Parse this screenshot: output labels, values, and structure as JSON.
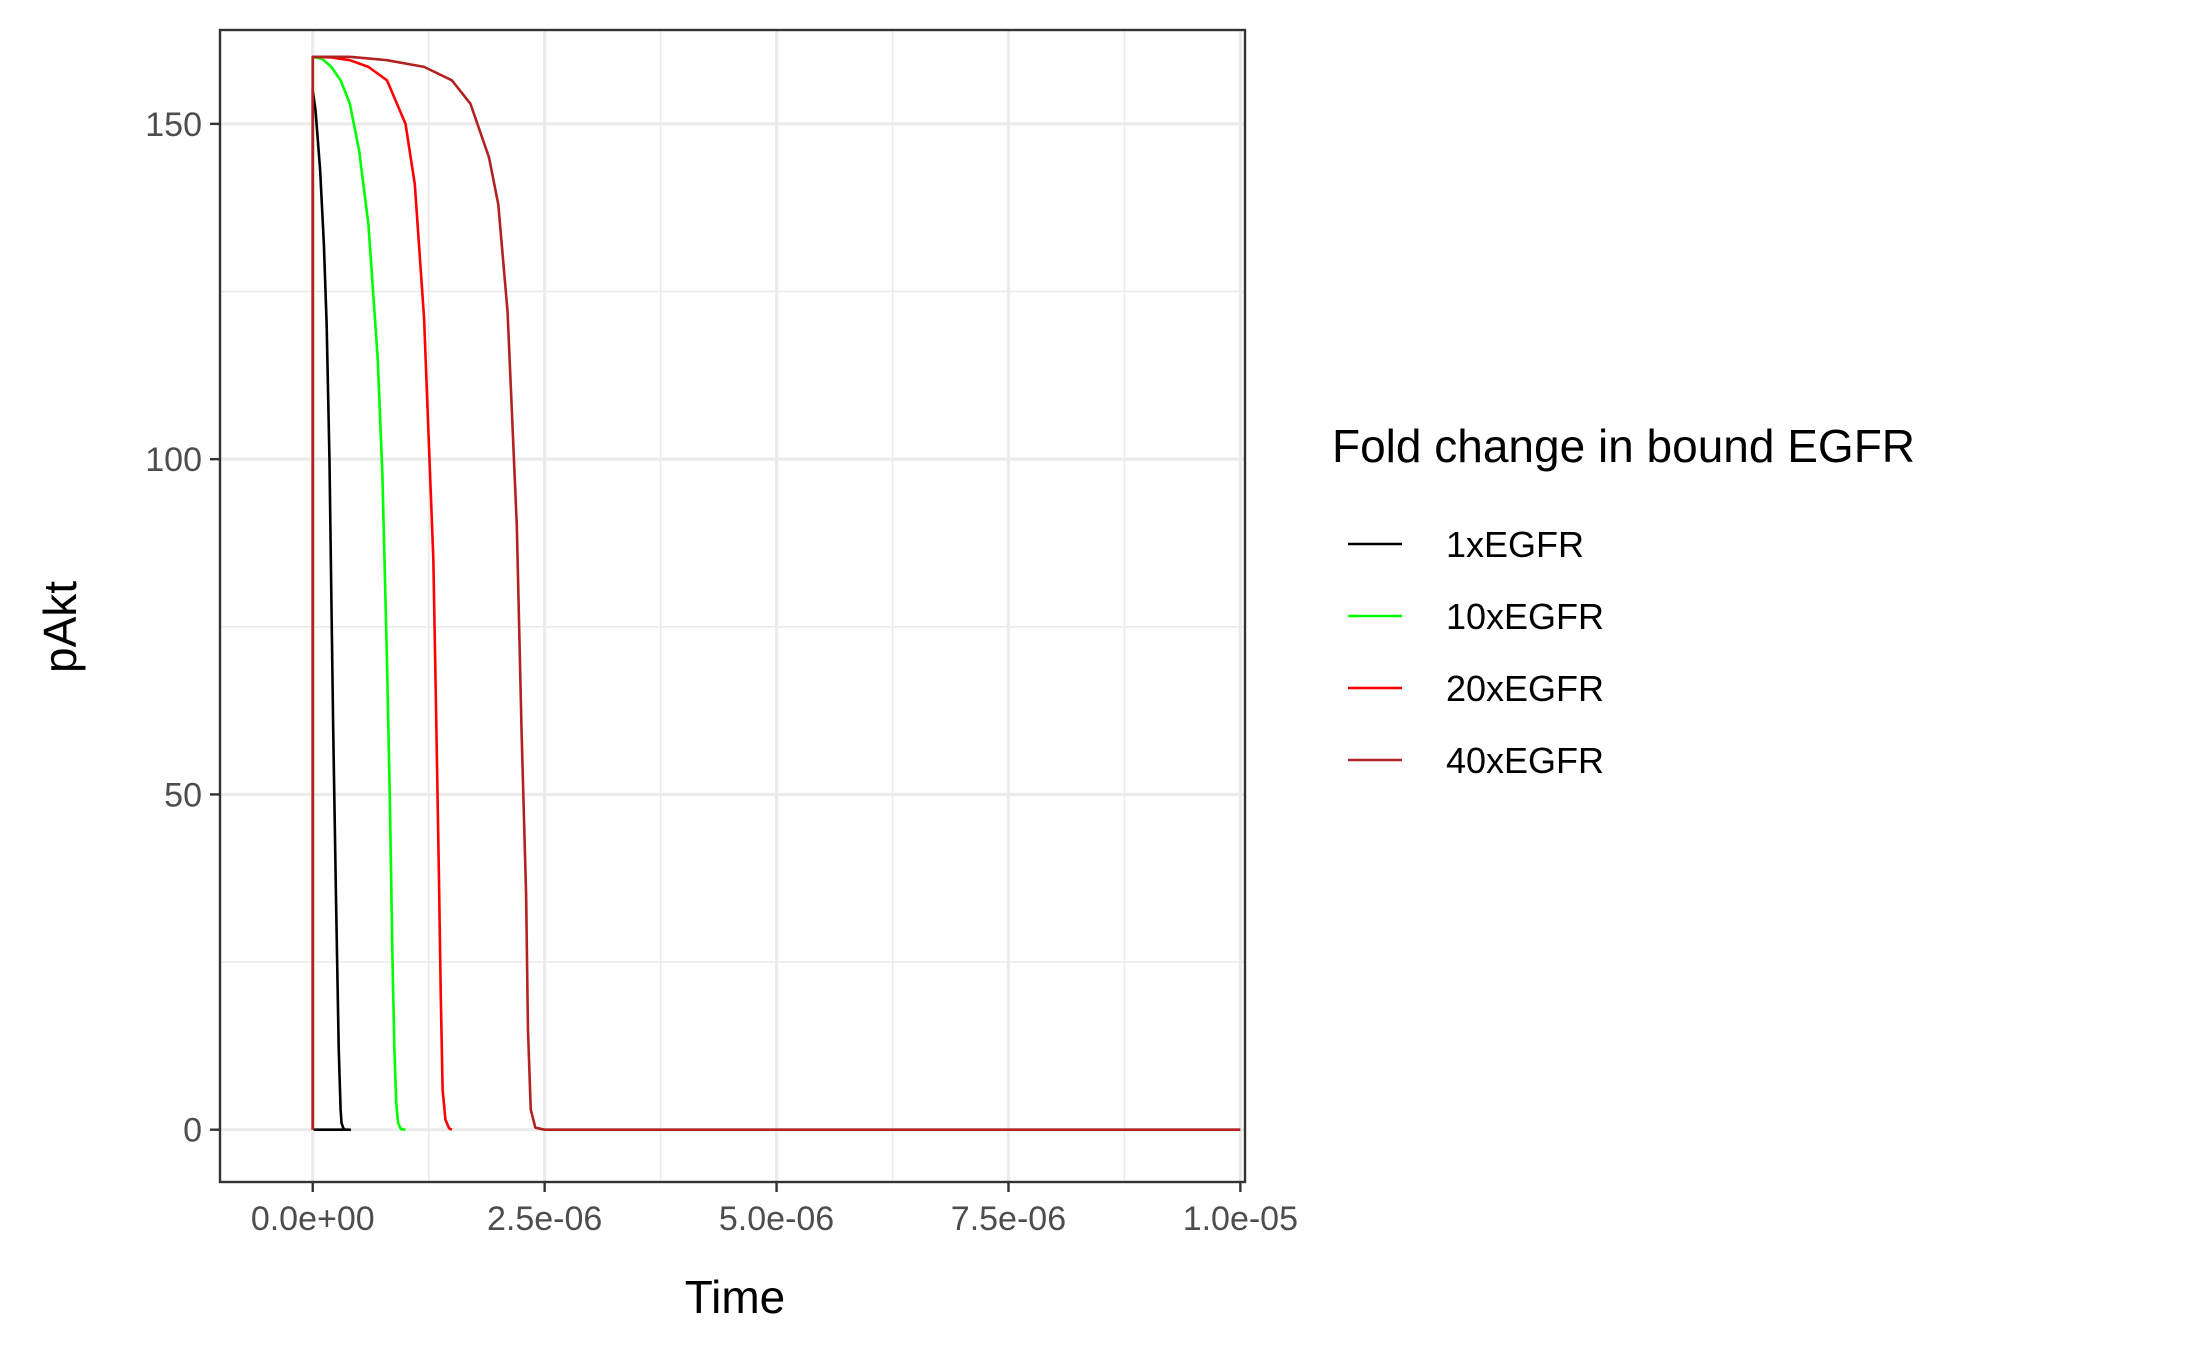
{
  "chart_data": {
    "type": "line",
    "xlabel": "Time",
    "ylabel": "pAkt",
    "xlim": [
      -1e-06,
      1.005e-05
    ],
    "ylim": [
      -7.8,
      164
    ],
    "x_ticks": [
      {
        "value": 0,
        "label": "0.0e+00"
      },
      {
        "value": 2.5e-06,
        "label": "2.5e-06"
      },
      {
        "value": 5e-06,
        "label": "5.0e-06"
      },
      {
        "value": 7.5e-06,
        "label": "7.5e-06"
      },
      {
        "value": 1e-05,
        "label": "1.0e-05"
      }
    ],
    "y_ticks": [
      {
        "value": 0,
        "label": "0"
      },
      {
        "value": 50,
        "label": "50"
      },
      {
        "value": 100,
        "label": "100"
      },
      {
        "value": 150,
        "label": "150"
      }
    ],
    "grid": true,
    "legend": {
      "title": "Fold change in bound EGFR",
      "position": "right"
    },
    "series": [
      {
        "name": "1xEGFR",
        "color": "#000000",
        "x": [
          0,
          0,
          3e-08,
          8e-08,
          1.2e-07,
          1.5e-07,
          1.8e-07,
          2e-07,
          2.2e-07,
          2.5e-07,
          2.8e-07,
          3e-07,
          3.1e-07,
          3.3e-07,
          3.5e-07,
          4e-07,
          1e-08
        ],
        "y": [
          0,
          155,
          152,
          143,
          132,
          120,
          100,
          80,
          60,
          35,
          12,
          3,
          1,
          0.2,
          0,
          0,
          0
        ]
      },
      {
        "name": "10xEGFR",
        "color": "#00ff00",
        "x": [
          0,
          0,
          1e-07,
          2e-07,
          3e-07,
          4e-07,
          5e-07,
          6e-07,
          7e-07,
          7.5e-07,
          8e-07,
          8.3e-07,
          8.6e-07,
          8.8e-07,
          9e-07,
          9.2e-07,
          9.5e-07,
          1e-06
        ],
        "y": [
          0,
          160,
          159.7,
          158.5,
          156.5,
          153,
          146,
          135,
          115,
          98,
          70,
          50,
          25,
          12,
          4,
          1,
          0.1,
          0
        ]
      },
      {
        "name": "20xEGFR",
        "color": "#ff0000",
        "x": [
          0,
          0,
          2e-07,
          4e-07,
          6e-07,
          8e-07,
          1e-06,
          1.1e-06,
          1.2e-06,
          1.3e-06,
          1.33e-06,
          1.36e-06,
          1.38e-06,
          1.4e-06,
          1.43e-06,
          1.47e-06,
          1.5e-06
        ],
        "y": [
          0,
          160,
          159.9,
          159.5,
          158.5,
          156.5,
          150,
          141,
          121,
          85,
          62,
          38,
          20,
          6,
          1.5,
          0.2,
          0
        ]
      },
      {
        "name": "40xEGFR",
        "color": "#b22222",
        "x": [
          0,
          0,
          4e-07,
          8e-07,
          1.2e-06,
          1.5e-06,
          1.7e-06,
          1.9e-06,
          2e-06,
          2.1e-06,
          2.2e-06,
          2.25e-06,
          2.3e-06,
          2.32e-06,
          2.35e-06,
          2.4e-06,
          2.5e-06,
          1e-05
        ],
        "y": [
          0,
          160,
          160,
          159.5,
          158.5,
          156.5,
          153,
          145,
          138,
          122,
          90,
          60,
          35,
          15,
          3,
          0.3,
          0,
          0
        ]
      }
    ]
  }
}
